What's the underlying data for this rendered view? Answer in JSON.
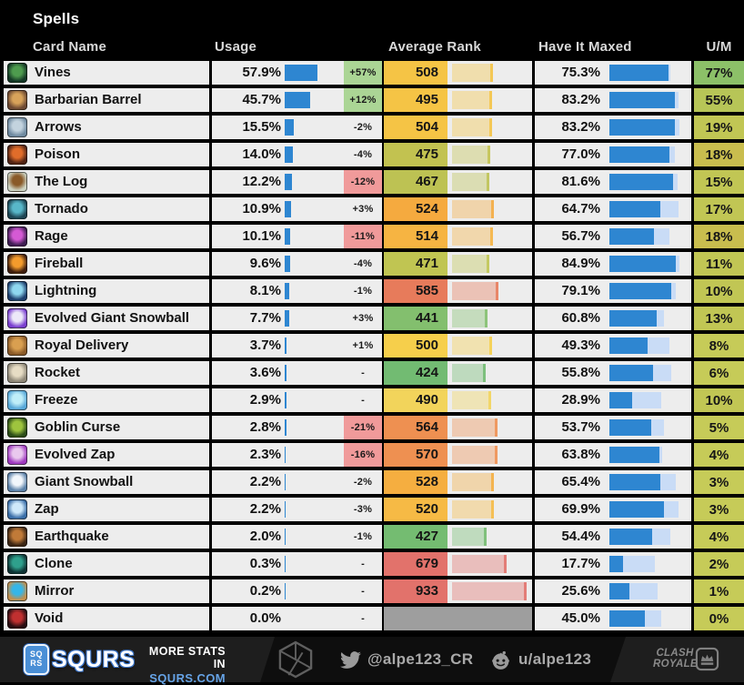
{
  "header": {
    "title": "Spells",
    "columns": {
      "card": "Card Name",
      "usage": "Usage",
      "rank": "Average Rank",
      "maxed": "Have It Maxed",
      "um": "U/M"
    }
  },
  "colors": {
    "usage_bar": "#2e86d1",
    "maxed_bar": "#2e86d1",
    "have_bar": "#c9dcf6",
    "row_bg": "#ededed",
    "badge_up": "#abd595",
    "badge_down": "#f09a9a",
    "void_rank_bg": "#9e9e9e"
  },
  "rows": [
    {
      "name": "Vines",
      "usage": "57.9%",
      "usage_pct": 57.9,
      "change": "+57%",
      "change_bg": "#abd595",
      "rank": "508",
      "rank_pct": 50.8,
      "rank_color": "#f5c445",
      "maxed": "75.3%",
      "maxed_pct": 75.3,
      "have_pct": 78,
      "um": "77%",
      "um_color": "#8cc068",
      "icon": "vines-card-icon",
      "icon_inner": "#4e9b4e",
      "icon_outer": "#143826"
    },
    {
      "name": "Barbarian Barrel",
      "usage": "45.7%",
      "usage_pct": 45.7,
      "change": "+12%",
      "change_bg": "#abd595",
      "rank": "495",
      "rank_pct": 49.5,
      "rank_color": "#f5c445",
      "maxed": "83.2%",
      "maxed_pct": 83.2,
      "have_pct": 88,
      "um": "55%",
      "um_color": "#b7c557",
      "icon": "barbarian-barrel-card-icon",
      "icon_inner": "#d8a35a",
      "icon_outer": "#6e4a33"
    },
    {
      "name": "Arrows",
      "usage": "15.5%",
      "usage_pct": 15.5,
      "change": "-2%",
      "change_bg": "",
      "rank": "504",
      "rank_pct": 50.4,
      "rank_color": "#f5c445",
      "maxed": "83.2%",
      "maxed_pct": 83.2,
      "have_pct": 90,
      "um": "19%",
      "um_color": "#c1c654",
      "icon": "arrows-card-icon",
      "icon_inner": "#c3d3de",
      "icon_outer": "#6f8aa0"
    },
    {
      "name": "Poison",
      "usage": "14.0%",
      "usage_pct": 14.0,
      "change": "-4%",
      "change_bg": "",
      "rank": "475",
      "rank_pct": 47.5,
      "rank_color": "#c2c250",
      "maxed": "77.0%",
      "maxed_pct": 77.0,
      "have_pct": 84,
      "um": "18%",
      "um_color": "#c9bd4e",
      "icon": "poison-card-icon",
      "icon_inner": "#e06c2a",
      "icon_outer": "#512414"
    },
    {
      "name": "The Log",
      "usage": "12.2%",
      "usage_pct": 12.2,
      "change": "-12%",
      "change_bg": "#f09a9a",
      "rank": "467",
      "rank_pct": 46.7,
      "rank_color": "#bdc253",
      "maxed": "81.6%",
      "maxed_pct": 81.6,
      "have_pct": 87,
      "um": "15%",
      "um_color": "#c1c654",
      "icon": "the-log-card-icon",
      "icon_inner": "#8a5a28",
      "icon_outer": "#cdd3c2"
    },
    {
      "name": "Tornado",
      "usage": "10.9%",
      "usage_pct": 10.9,
      "change": "+3%",
      "change_bg": "",
      "rank": "524",
      "rank_pct": 52.4,
      "rank_color": "#f5aa3f",
      "maxed": "64.7%",
      "maxed_pct": 64.7,
      "have_pct": 88,
      "um": "17%",
      "um_color": "#c1c654",
      "icon": "tornado-card-icon",
      "icon_inner": "#58b7c9",
      "icon_outer": "#1d4553"
    },
    {
      "name": "Rage",
      "usage": "10.1%",
      "usage_pct": 10.1,
      "change": "-11%",
      "change_bg": "#f09a9a",
      "rank": "514",
      "rank_pct": 51.4,
      "rank_color": "#f6b442",
      "maxed": "56.7%",
      "maxed_pct": 56.7,
      "have_pct": 77,
      "um": "18%",
      "um_color": "#c9bd4e",
      "icon": "rage-card-icon",
      "icon_inner": "#d45ad4",
      "icon_outer": "#3f1d52"
    },
    {
      "name": "Fireball",
      "usage": "9.6%",
      "usage_pct": 9.6,
      "change": "-4%",
      "change_bg": "",
      "rank": "471",
      "rank_pct": 47.1,
      "rank_color": "#c0c552",
      "maxed": "84.9%",
      "maxed_pct": 84.9,
      "have_pct": 90,
      "um": "11%",
      "um_color": "#c1c654",
      "icon": "fireball-card-icon",
      "icon_inner": "#f39b2c",
      "icon_outer": "#401f0e"
    },
    {
      "name": "Lightning",
      "usage": "8.1%",
      "usage_pct": 8.1,
      "change": "-1%",
      "change_bg": "",
      "rank": "585",
      "rank_pct": 58.5,
      "rank_color": "#e77b5b",
      "maxed": "79.1%",
      "maxed_pct": 79.1,
      "have_pct": 85,
      "um": "10%",
      "um_color": "#c1c654",
      "icon": "lightning-card-icon",
      "icon_inner": "#8fd7ef",
      "icon_outer": "#1e3f6e"
    },
    {
      "name": "Evolved Giant Snowball",
      "usage": "7.7%",
      "usage_pct": 7.7,
      "change": "+3%",
      "change_bg": "",
      "rank": "441",
      "rank_pct": 44.1,
      "rank_color": "#83bf6e",
      "maxed": "60.8%",
      "maxed_pct": 60.8,
      "have_pct": 70,
      "um": "13%",
      "um_color": "#c1c654",
      "icon": "evolved-giant-snowball-card-icon",
      "icon_inner": "#ece8f8",
      "icon_outer": "#7a3fd0"
    },
    {
      "name": "Royal Delivery",
      "usage": "3.7%",
      "usage_pct": 3.7,
      "change": "+1%",
      "change_bg": "",
      "rank": "500",
      "rank_pct": 50.0,
      "rank_color": "#f6cf4b",
      "maxed": "49.3%",
      "maxed_pct": 49.3,
      "have_pct": 77,
      "um": "8%",
      "um_color": "#c6cb58",
      "icon": "royal-delivery-card-icon",
      "icon_inner": "#d99f50",
      "icon_outer": "#8a5a28"
    },
    {
      "name": "Rocket",
      "usage": "3.6%",
      "usage_pct": 3.6,
      "change": "-",
      "change_bg": "",
      "rank": "424",
      "rank_pct": 42.4,
      "rank_color": "#72bb72",
      "maxed": "55.8%",
      "maxed_pct": 55.8,
      "have_pct": 79,
      "um": "6%",
      "um_color": "#c6cb58",
      "icon": "rocket-card-icon",
      "icon_inner": "#e6dcc4",
      "icon_outer": "#8f8878"
    },
    {
      "name": "Freeze",
      "usage": "2.9%",
      "usage_pct": 2.9,
      "change": "-",
      "change_bg": "",
      "rank": "490",
      "rank_pct": 49.0,
      "rank_color": "#f2d45b",
      "maxed": "28.9%",
      "maxed_pct": 28.9,
      "have_pct": 66,
      "um": "10%",
      "um_color": "#c1c654",
      "icon": "freeze-card-icon",
      "icon_inner": "#bfeef8",
      "icon_outer": "#58a8d8"
    },
    {
      "name": "Goblin Curse",
      "usage": "2.8%",
      "usage_pct": 2.8,
      "change": "-21%",
      "change_bg": "#f09a9a",
      "rank": "564",
      "rank_pct": 56.4,
      "rank_color": "#ee9051",
      "maxed": "53.7%",
      "maxed_pct": 53.7,
      "have_pct": 70,
      "um": "5%",
      "um_color": "#c6cb58",
      "icon": "goblin-curse-card-icon",
      "icon_inner": "#9ec43e",
      "icon_outer": "#2c4d18"
    },
    {
      "name": "Evolved Zap",
      "usage": "2.3%",
      "usage_pct": 2.3,
      "change": "-16%",
      "change_bg": "#f09a9a",
      "rank": "570",
      "rank_pct": 57.0,
      "rank_color": "#ee9051",
      "maxed": "63.8%",
      "maxed_pct": 63.8,
      "have_pct": 68,
      "um": "4%",
      "um_color": "#c6cb58",
      "icon": "evolved-zap-card-icon",
      "icon_inner": "#e9c8ee",
      "icon_outer": "#a03ac0"
    },
    {
      "name": "Giant Snowball",
      "usage": "2.2%",
      "usage_pct": 2.2,
      "change": "-2%",
      "change_bg": "",
      "rank": "528",
      "rank_pct": 52.8,
      "rank_color": "#f5ae40",
      "maxed": "65.4%",
      "maxed_pct": 65.4,
      "have_pct": 85,
      "um": "3%",
      "um_color": "#c6cb58",
      "icon": "giant-snowball-card-icon",
      "icon_inner": "#f2f6fb",
      "icon_outer": "#5c82aa"
    },
    {
      "name": "Zap",
      "usage": "2.2%",
      "usage_pct": 2.2,
      "change": "-3%",
      "change_bg": "",
      "rank": "520",
      "rank_pct": 52.0,
      "rank_color": "#f6ba45",
      "maxed": "69.9%",
      "maxed_pct": 69.9,
      "have_pct": 88,
      "um": "3%",
      "um_color": "#c6cb58",
      "icon": "zap-card-icon",
      "icon_inner": "#cfe9fa",
      "icon_outer": "#3a6ea8"
    },
    {
      "name": "Earthquake",
      "usage": "2.0%",
      "usage_pct": 2.0,
      "change": "-1%",
      "change_bg": "",
      "rank": "427",
      "rank_pct": 42.7,
      "rank_color": "#74bc71",
      "maxed": "54.4%",
      "maxed_pct": 54.4,
      "have_pct": 78,
      "um": "4%",
      "um_color": "#c6cb58",
      "icon": "earthquake-card-icon",
      "icon_inner": "#c07a38",
      "icon_outer": "#3c2614"
    },
    {
      "name": "Clone",
      "usage": "0.3%",
      "usage_pct": 0.3,
      "change": "-",
      "change_bg": "",
      "rank": "679",
      "rank_pct": 67.9,
      "rank_color": "#e2726b",
      "maxed": "17.7%",
      "maxed_pct": 17.7,
      "have_pct": 58,
      "um": "2%",
      "um_color": "#c6cb58",
      "icon": "clone-card-icon",
      "icon_inner": "#2fa08c",
      "icon_outer": "#0f3334"
    },
    {
      "name": "Mirror",
      "usage": "0.2%",
      "usage_pct": 0.2,
      "change": "-",
      "change_bg": "",
      "rank": "933",
      "rank_pct": 93.3,
      "rank_color": "#e2726b",
      "maxed": "25.6%",
      "maxed_pct": 25.6,
      "have_pct": 62,
      "um": "1%",
      "um_color": "#c6cb58",
      "icon": "mirror-card-icon",
      "icon_inner": "#35b6e8",
      "icon_outer": "#c09050"
    },
    {
      "name": "Void",
      "usage": "0.0%",
      "usage_pct": 0.0,
      "change": "-",
      "change_bg": "",
      "rank": null,
      "rank_pct": 0,
      "rank_color": "#9e9e9e",
      "maxed": "45.0%",
      "maxed_pct": 45.0,
      "have_pct": 66,
      "um": "0%",
      "um_color": "#c6cb58",
      "icon": "void-card-icon",
      "icon_inner": "#c03030",
      "icon_outer": "#2a0d12"
    }
  ],
  "footer": {
    "sqrs_line1": "SQ",
    "sqrs_line2": "RS",
    "brand": "SQURS",
    "more_line1": "MORE STATS IN",
    "more_line2": "SQURS.COM",
    "twitter": "@alpe123_CR",
    "reddit": "u/alpe123",
    "cr_line1": "CLASH",
    "cr_line2": "ROYALE"
  }
}
